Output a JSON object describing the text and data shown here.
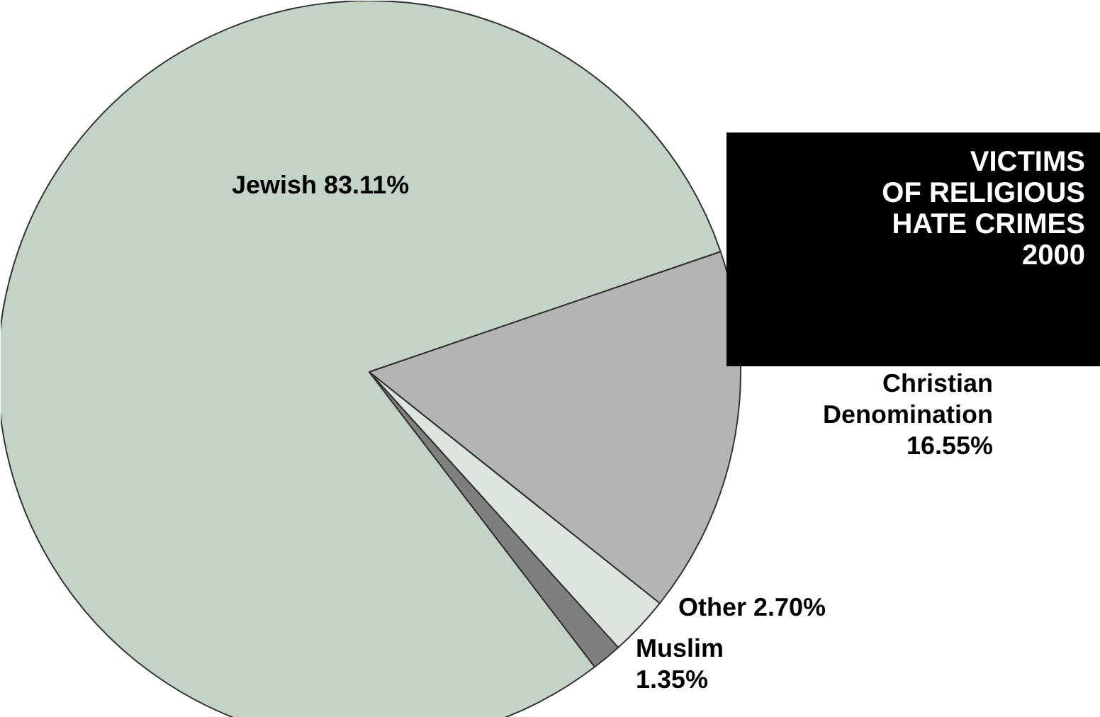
{
  "chart_data": {
    "type": "pie",
    "title": "VICTIMS\nOF RELIGIOUS\nHATE CRIMES\n2000",
    "categories": [
      "Jewish",
      "Christian Denomination",
      "Other",
      "Muslim"
    ],
    "values": [
      83.11,
      16.55,
      2.7,
      1.35
    ],
    "colors": [
      "#c3d3c6",
      "#b4b4b4",
      "#dce5de",
      "#7f7f7f"
    ],
    "value_labels": [
      "83.11%",
      "16.55%",
      "2.70%",
      "1.35%"
    ]
  }
}
